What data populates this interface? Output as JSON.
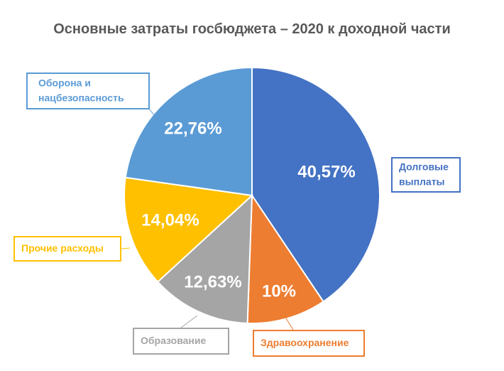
{
  "chart_data": {
    "type": "pie",
    "title": "Основные затраты госбюджета – 2020 к доходной части",
    "slices": [
      {
        "name": "Долговые выплаты",
        "name_lines": [
          "Долговые",
          "выплаты"
        ],
        "value": 40.57,
        "label": "40,57%",
        "color": "#4472C4"
      },
      {
        "name": "Здравоохранение",
        "name_lines": [
          "Здравоохранение"
        ],
        "value": 10,
        "label": "10%",
        "color": "#ED7D31"
      },
      {
        "name": "Образование",
        "name_lines": [
          "Образование"
        ],
        "value": 12.63,
        "label": "12,63%",
        "color": "#A5A5A5"
      },
      {
        "name": "Прочие расходы",
        "name_lines": [
          "Прочие расходы"
        ],
        "value": 14.04,
        "label": "14,04%",
        "color": "#FFC000"
      },
      {
        "name": "Оборона и нацбезопасность",
        "name_lines": [
          "Оборона и",
          "нацбезопасность"
        ],
        "value": 22.76,
        "label": "22,76%",
        "color": "#5B9BD5"
      }
    ],
    "legend": "none",
    "label_placement": "callouts"
  }
}
